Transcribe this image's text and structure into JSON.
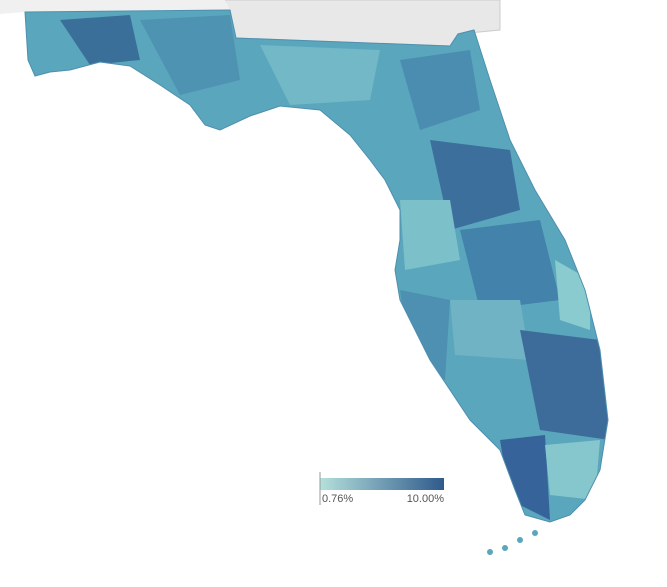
{
  "legend": {
    "min_label": "0.76%",
    "max_label": "10.00%",
    "colors": [
      "#b4e0dc",
      "#2f5a8c"
    ]
  }
}
